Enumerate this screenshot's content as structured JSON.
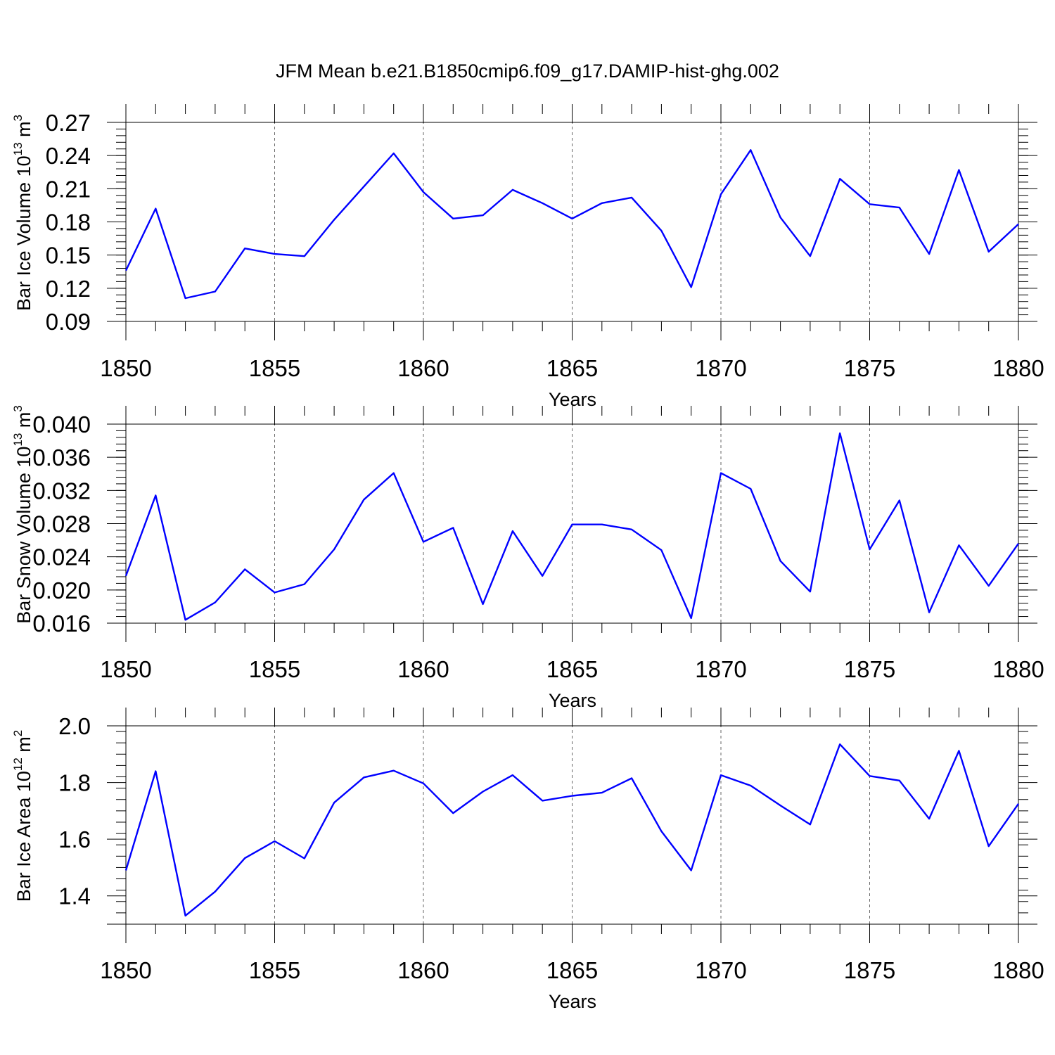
{
  "figure_title": "JFM Mean b.e21.B1850cmip6.f09_g17.DAMIP-hist-ghg.002",
  "colors": {
    "line": "#0000ff",
    "axis": "#000000",
    "grid": "#666666"
  },
  "chart_data": [
    {
      "type": "line",
      "ylabel": "Bar Ice Volume 10",
      "ylabel_exp": "13",
      "ylabel_unit": " m",
      "ylabel_unit_exp": "3",
      "xlabel": "Years",
      "xlim": [
        1850,
        1880
      ],
      "ylim": [
        0.09,
        0.27
      ],
      "xticks": [
        1850,
        1855,
        1860,
        1865,
        1870,
        1875,
        1880
      ],
      "xtick_labels": [
        "1850",
        "1855",
        "1860",
        "1865",
        "1870",
        "1875",
        "1880"
      ],
      "yticks": [
        0.09,
        0.12,
        0.15,
        0.18,
        0.21,
        0.24,
        0.27
      ],
      "ytick_labels": [
        "0.09",
        "0.12",
        "0.15",
        "0.18",
        "0.21",
        "0.24",
        "0.27"
      ],
      "ytop": 0.27,
      "ybottom": 0.09,
      "minor_y_step": 0.006,
      "grid_x": [
        1855,
        1860,
        1865,
        1870,
        1875
      ],
      "series": [
        {
          "name": "Bar Ice Volume",
          "x": [
            1850,
            1851,
            1852,
            1853,
            1854,
            1855,
            1856,
            1857,
            1858,
            1859,
            1860,
            1861,
            1862,
            1863,
            1864,
            1865,
            1866,
            1867,
            1868,
            1869,
            1870,
            1871,
            1872,
            1873,
            1874,
            1875,
            1876,
            1877,
            1878,
            1879,
            1880
          ],
          "values": [
            0.136,
            0.192,
            0.111,
            0.117,
            0.156,
            0.151,
            0.149,
            0.182,
            0.212,
            0.242,
            0.207,
            0.183,
            0.186,
            0.209,
            0.197,
            0.183,
            0.197,
            0.202,
            0.172,
            0.121,
            0.205,
            0.245,
            0.184,
            0.149,
            0.219,
            0.196,
            0.193,
            0.151,
            0.227,
            0.153,
            0.178
          ]
        }
      ]
    },
    {
      "type": "line",
      "ylabel": "Bar Snow Volume 10",
      "ylabel_exp": "13",
      "ylabel_unit": " m",
      "ylabel_unit_exp": "3",
      "xlabel": "Years",
      "xlim": [
        1850,
        1880
      ],
      "ylim": [
        0.016,
        0.04
      ],
      "xticks": [
        1850,
        1855,
        1860,
        1865,
        1870,
        1875,
        1880
      ],
      "xtick_labels": [
        "1850",
        "1855",
        "1860",
        "1865",
        "1870",
        "1875",
        "1880"
      ],
      "yticks": [
        0.016,
        0.02,
        0.024,
        0.028,
        0.032,
        0.036,
        0.04
      ],
      "ytick_labels": [
        "0.016",
        "0.020",
        "0.024",
        "0.028",
        "0.032",
        "0.036",
        "0.040"
      ],
      "ytop": 0.04,
      "ybottom": 0.016,
      "minor_y_step": 0.0008,
      "grid_x": [
        1855,
        1860,
        1865,
        1870,
        1875
      ],
      "series": [
        {
          "name": "Bar Snow Volume",
          "x": [
            1850,
            1851,
            1852,
            1853,
            1854,
            1855,
            1856,
            1857,
            1858,
            1859,
            1860,
            1861,
            1862,
            1863,
            1864,
            1865,
            1866,
            1867,
            1868,
            1869,
            1870,
            1871,
            1872,
            1873,
            1874,
            1875,
            1876,
            1877,
            1878,
            1879,
            1880
          ],
          "values": [
            0.0217,
            0.0314,
            0.0164,
            0.0185,
            0.0225,
            0.0197,
            0.0207,
            0.0249,
            0.0309,
            0.0341,
            0.0258,
            0.0275,
            0.0183,
            0.0271,
            0.0217,
            0.0279,
            0.0279,
            0.0273,
            0.0248,
            0.0166,
            0.0341,
            0.0322,
            0.0235,
            0.0198,
            0.0389,
            0.0249,
            0.0308,
            0.0173,
            0.0254,
            0.0205,
            0.0256
          ]
        }
      ]
    },
    {
      "type": "line",
      "ylabel": "Bar Ice Area 10",
      "ylabel_exp": "12",
      "ylabel_unit": " m",
      "ylabel_unit_exp": "2",
      "xlabel": "Years",
      "xlim": [
        1850,
        1880
      ],
      "ylim": [
        1.3,
        2.0
      ],
      "xticks": [
        1850,
        1855,
        1860,
        1865,
        1870,
        1875,
        1880
      ],
      "xtick_labels": [
        "1850",
        "1855",
        "1860",
        "1865",
        "1870",
        "1875",
        "1880"
      ],
      "yticks": [
        1.4,
        1.6,
        1.8,
        2.0
      ],
      "ytick_labels": [
        "1.4",
        "1.6",
        "1.8",
        "2.0"
      ],
      "ytop": 2.0,
      "ybottom": 1.3,
      "minor_y_step": 0.04,
      "grid_x": [
        1855,
        1860,
        1865,
        1870,
        1875
      ],
      "series": [
        {
          "name": "Bar Ice Area",
          "x": [
            1850,
            1851,
            1852,
            1853,
            1854,
            1855,
            1856,
            1857,
            1858,
            1859,
            1860,
            1861,
            1862,
            1863,
            1864,
            1865,
            1866,
            1867,
            1868,
            1869,
            1870,
            1871,
            1872,
            1873,
            1874,
            1875,
            1876,
            1877,
            1878,
            1879,
            1880
          ],
          "values": [
            1.49,
            1.84,
            1.33,
            1.415,
            1.533,
            1.593,
            1.532,
            1.729,
            1.818,
            1.842,
            1.797,
            1.692,
            1.768,
            1.826,
            1.736,
            1.753,
            1.764,
            1.815,
            1.628,
            1.49,
            1.826,
            1.789,
            1.719,
            1.652,
            1.935,
            1.823,
            1.807,
            1.672,
            1.912,
            1.575,
            1.725
          ]
        }
      ]
    }
  ]
}
